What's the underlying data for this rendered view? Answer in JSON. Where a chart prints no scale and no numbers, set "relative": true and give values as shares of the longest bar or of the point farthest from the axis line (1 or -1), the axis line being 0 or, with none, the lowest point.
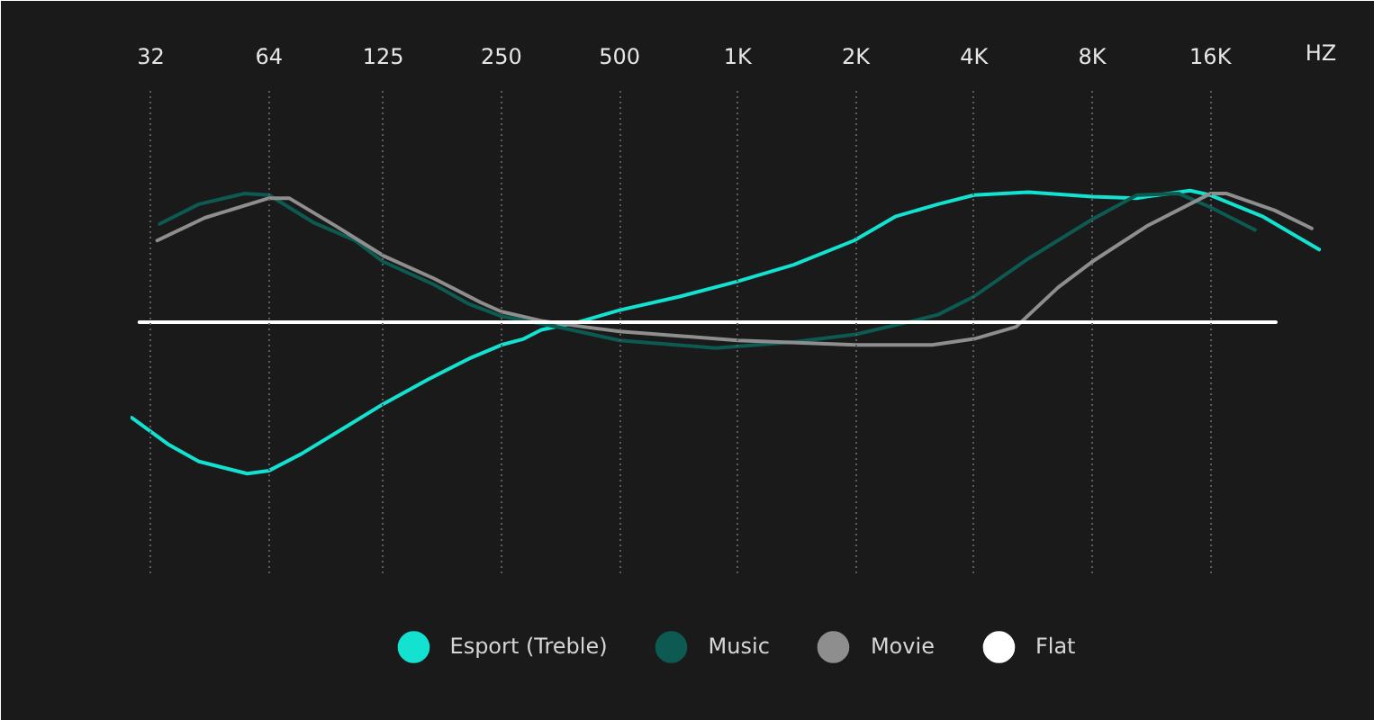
{
  "chart_data": {
    "type": "line",
    "relative": true,
    "log": "x",
    "xlabel": "HZ",
    "xlim": [
      28.4,
      30600
    ],
    "xticks": [
      32,
      64,
      125,
      250,
      500,
      {
        "value": 1000,
        "label": "1K"
      },
      {
        "value": 2000,
        "label": "2K"
      },
      {
        "value": 4000,
        "label": "4K"
      },
      {
        "value": 8000,
        "label": "8K"
      },
      {
        "value": 16000,
        "label": "16K"
      }
    ],
    "grid": "x",
    "legend": "bottom",
    "series": [
      {
        "name": "Esport (Treble)",
        "color": "#12e2cf",
        "x": [
          28.6,
          35.6,
          42.4,
          56.3,
          64,
          77.3,
          102,
          125,
          162,
          207,
          250,
          285,
          316,
          391,
          500,
          712,
          1000,
          1390,
          1980,
          2530,
          3240,
          4000,
          5500,
          8000,
          10400,
          14200,
          16000,
          21700,
          30300
        ],
        "values": [
          -0.63,
          -0.81,
          -0.92,
          -1.0,
          -0.98,
          -0.87,
          -0.68,
          -0.54,
          -0.38,
          -0.24,
          -0.15,
          -0.11,
          -0.05,
          0,
          0.08,
          0.17,
          0.27,
          0.38,
          0.54,
          0.7,
          0.78,
          0.84,
          0.86,
          0.83,
          0.82,
          0.87,
          0.84,
          0.7,
          0.48
        ]
      },
      {
        "name": "Music",
        "color": "#0c5a51",
        "x": [
          33.7,
          42.4,
          55.3,
          64,
          82.9,
          106,
          125,
          168,
          207,
          250,
          316,
          377,
          500,
          879,
          1390,
          2000,
          2810,
          3240,
          4000,
          5500,
          8000,
          10400,
          13300,
          16000,
          20800
        ],
        "values": [
          0.65,
          0.78,
          0.85,
          0.84,
          0.66,
          0.54,
          0.4,
          0.25,
          0.12,
          0.04,
          -0.01,
          -0.05,
          -0.12,
          -0.17,
          -0.13,
          -0.08,
          0.01,
          0.05,
          0.17,
          0.42,
          0.68,
          0.84,
          0.85,
          0.76,
          0.61
        ]
      },
      {
        "name": "Movie",
        "color": "#8e8e8e",
        "x": [
          33.2,
          43.9,
          64,
          72,
          95.5,
          125,
          168,
          222,
          250,
          316,
          405,
          500,
          1000,
          2000,
          3130,
          4000,
          5120,
          6550,
          8000,
          11100,
          16000,
          17600,
          23300,
          29000
        ],
        "values": [
          0.54,
          0.69,
          0.82,
          0.82,
          0.63,
          0.44,
          0.29,
          0.13,
          0.07,
          0.01,
          -0.03,
          -0.06,
          -0.12,
          -0.15,
          -0.15,
          -0.11,
          -0.03,
          0.23,
          0.4,
          0.64,
          0.85,
          0.85,
          0.74,
          0.62
        ]
      },
      {
        "name": "Flat",
        "color": "#ffffff",
        "x": [
          29.9,
          23500
        ],
        "values": [
          0,
          0
        ]
      }
    ]
  }
}
